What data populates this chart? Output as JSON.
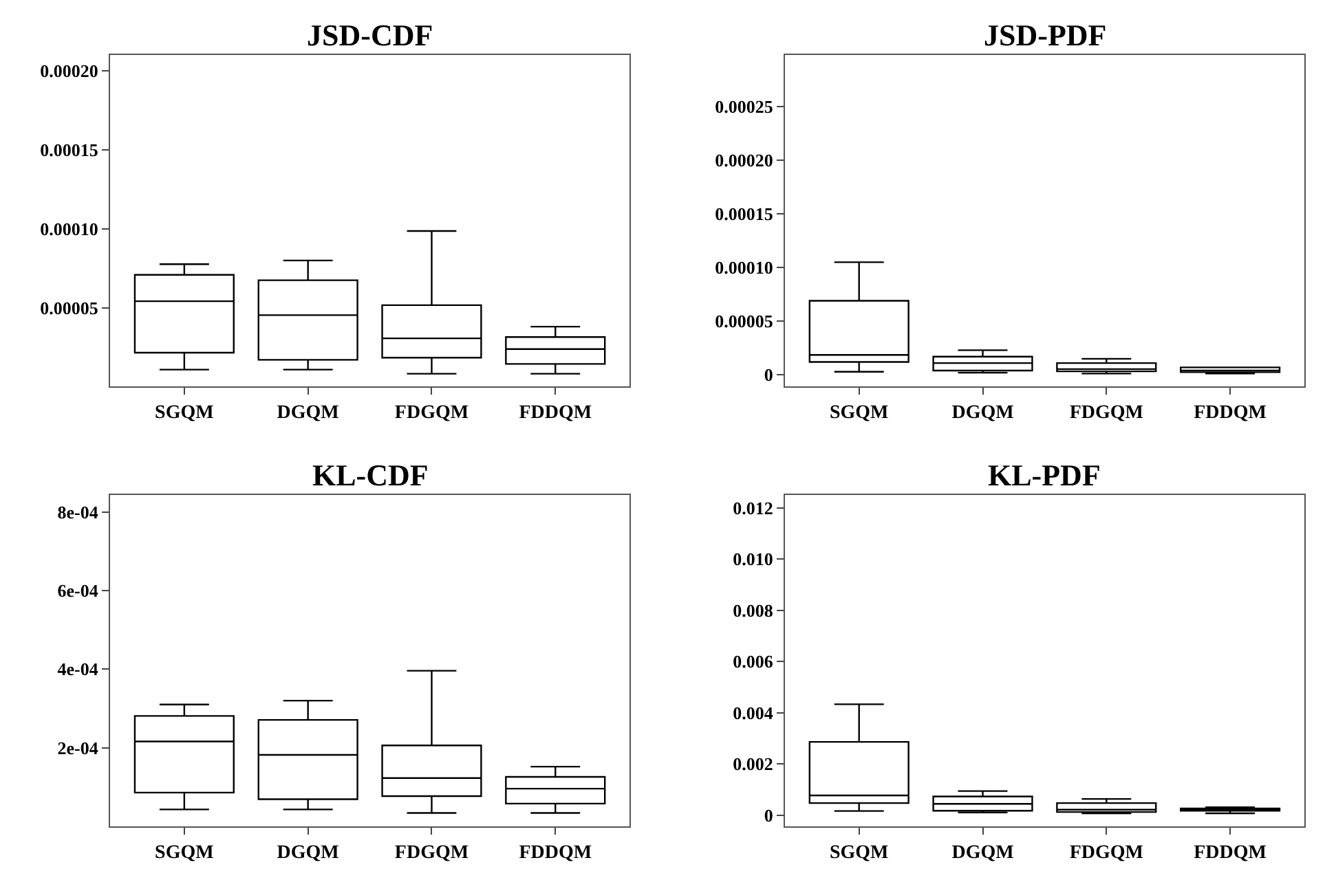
{
  "chart_data": [
    {
      "type": "box",
      "title": "JSD-CDF",
      "categories": [
        "SGQM",
        "DGQM",
        "FDGQM",
        "FDDQM"
      ],
      "ylim": [
        0,
        0.00021
      ],
      "yticks": [
        {
          "value": 5e-05,
          "label": "0.00005"
        },
        {
          "value": 0.0001,
          "label": "0.00010"
        },
        {
          "value": 0.00015,
          "label": "0.00015"
        },
        {
          "value": 0.0002,
          "label": "0.00020"
        }
      ],
      "grid": false,
      "boxes": [
        {
          "low": 1.08e-05,
          "q1": 2.15e-05,
          "median": 5.41e-05,
          "q3": 7.08e-05,
          "high": 7.76e-05
        },
        {
          "low": 1.08e-05,
          "q1": 1.7e-05,
          "median": 4.53e-05,
          "q3": 6.74e-05,
          "high": 7.99e-05
        },
        {
          "low": 8.2e-06,
          "q1": 1.84e-05,
          "median": 3.06e-05,
          "q3": 5.16e-05,
          "high": 9.86e-05
        },
        {
          "low": 8.2e-06,
          "q1": 1.44e-05,
          "median": 2.38e-05,
          "q3": 3.14e-05,
          "high": 3.8e-05
        }
      ]
    },
    {
      "type": "box",
      "title": "JSD-PDF",
      "categories": [
        "SGQM",
        "DGQM",
        "FDGQM",
        "FDDQM"
      ],
      "ylim": [
        -1.1e-05,
        0.000298
      ],
      "yticks": [
        {
          "value": 0,
          "label": "0"
        },
        {
          "value": 5e-05,
          "label": "0.00005"
        },
        {
          "value": 0.0001,
          "label": "0.00010"
        },
        {
          "value": 0.00015,
          "label": "0.00015"
        },
        {
          "value": 0.0002,
          "label": "0.00020"
        },
        {
          "value": 0.00025,
          "label": "0.00025"
        }
      ],
      "grid": false,
      "boxes": [
        {
          "low": 2.9e-06,
          "q1": 1.2e-05,
          "median": 1.86e-05,
          "q3": 6.9e-05,
          "high": 0.000105
        },
        {
          "low": 2e-06,
          "q1": 4e-06,
          "median": 1.1e-05,
          "q3": 1.7e-05,
          "high": 2.3e-05
        },
        {
          "low": 1.2e-06,
          "q1": 3.3e-06,
          "median": 5.4e-06,
          "q3": 1.1e-05,
          "high": 1.5e-05
        },
        {
          "low": 1.2e-06,
          "q1": 2.5e-06,
          "median": 4.1e-06,
          "q3": 7e-06,
          "high": 7e-06
        }
      ]
    },
    {
      "type": "box",
      "title": "KL-CDF",
      "categories": [
        "SGQM",
        "DGQM",
        "FDGQM",
        "FDDQM"
      ],
      "ylim": [
        0,
        0.000844
      ],
      "yticks": [
        {
          "value": 0.0002,
          "label": "2e-04"
        },
        {
          "value": 0.0004,
          "label": "4e-04"
        },
        {
          "value": 0.0006,
          "label": "6e-04"
        },
        {
          "value": 0.0008,
          "label": "8e-04"
        }
      ],
      "grid": false,
      "boxes": [
        {
          "low": 4.3e-05,
          "q1": 8.6e-05,
          "median": 0.000216,
          "q3": 0.000281,
          "high": 0.00031
        },
        {
          "low": 4.3e-05,
          "q1": 6.9e-05,
          "median": 0.000182,
          "q3": 0.000271,
          "high": 0.00032
        },
        {
          "low": 3.4e-05,
          "q1": 7.7e-05,
          "median": 0.000123,
          "q3": 0.000206,
          "high": 0.000396
        },
        {
          "low": 3.4e-05,
          "q1": 5.8e-05,
          "median": 9.6e-05,
          "q3": 0.000126,
          "high": 0.000152
        }
      ]
    },
    {
      "type": "box",
      "title": "KL-PDF",
      "categories": [
        "SGQM",
        "DGQM",
        "FDGQM",
        "FDDQM"
      ],
      "ylim": [
        -0.00044,
        0.01252
      ],
      "yticks": [
        {
          "value": 0,
          "label": "0"
        },
        {
          "value": 0.002,
          "label": "0.002"
        },
        {
          "value": 0.004,
          "label": "0.004"
        },
        {
          "value": 0.006,
          "label": "0.006"
        },
        {
          "value": 0.008,
          "label": "0.008"
        },
        {
          "value": 0.01,
          "label": "0.010"
        },
        {
          "value": 0.012,
          "label": "0.012"
        }
      ],
      "grid": false,
      "boxes": [
        {
          "low": 0.00016,
          "q1": 0.00047,
          "median": 0.00077,
          "q3": 0.00286,
          "high": 0.00433
        },
        {
          "low": 0.0001,
          "q1": 0.00017,
          "median": 0.00044,
          "q3": 0.00073,
          "high": 0.00094
        },
        {
          "low": 7e-05,
          "q1": 0.00012,
          "median": 0.00021,
          "q3": 0.00047,
          "high": 0.00063
        },
        {
          "low": 7e-05,
          "q1": 0.00017,
          "median": 0.00023,
          "q3": 0.00026,
          "high": 0.00031
        }
      ]
    }
  ]
}
